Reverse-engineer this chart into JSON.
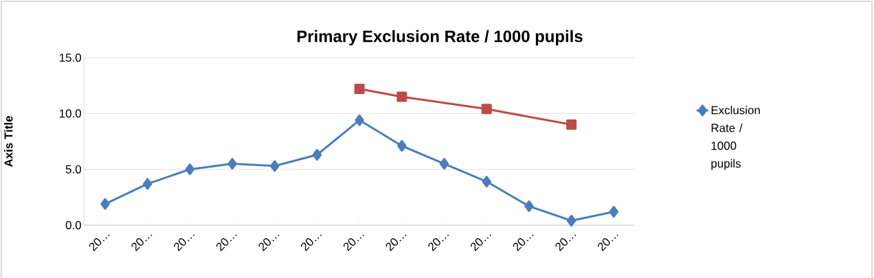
{
  "chart_data": {
    "type": "line",
    "title": "Primary Exclusion Rate / 1000 pupils",
    "ylabel": "Axis Title",
    "categories": [
      "20…",
      "20…",
      "20…",
      "20…",
      "20…",
      "20…",
      "20…",
      "20…",
      "20…",
      "20…",
      "20…",
      "20…",
      "20…"
    ],
    "series": [
      {
        "name": "Exclusion Rate / 1000 pupils",
        "color": "#4a7ebb",
        "marker": "diamond",
        "values": [
          1.9,
          3.7,
          5.0,
          5.5,
          5.3,
          6.3,
          9.4,
          7.1,
          5.5,
          3.9,
          1.7,
          0.4,
          1.2
        ]
      },
      {
        "color": "#be4b48",
        "marker": "square",
        "values": [
          null,
          null,
          null,
          null,
          null,
          null,
          12.2,
          11.5,
          null,
          10.4,
          null,
          9.0,
          null
        ]
      }
    ],
    "ylim": [
      0,
      15
    ],
    "yticks": [
      {
        "value": 0,
        "label": "0.0"
      },
      {
        "value": 5,
        "label": "5.0"
      },
      {
        "value": 10,
        "label": "10.0"
      },
      {
        "value": 15,
        "label": "15.0"
      }
    ],
    "grid": "y",
    "legend": "right"
  }
}
